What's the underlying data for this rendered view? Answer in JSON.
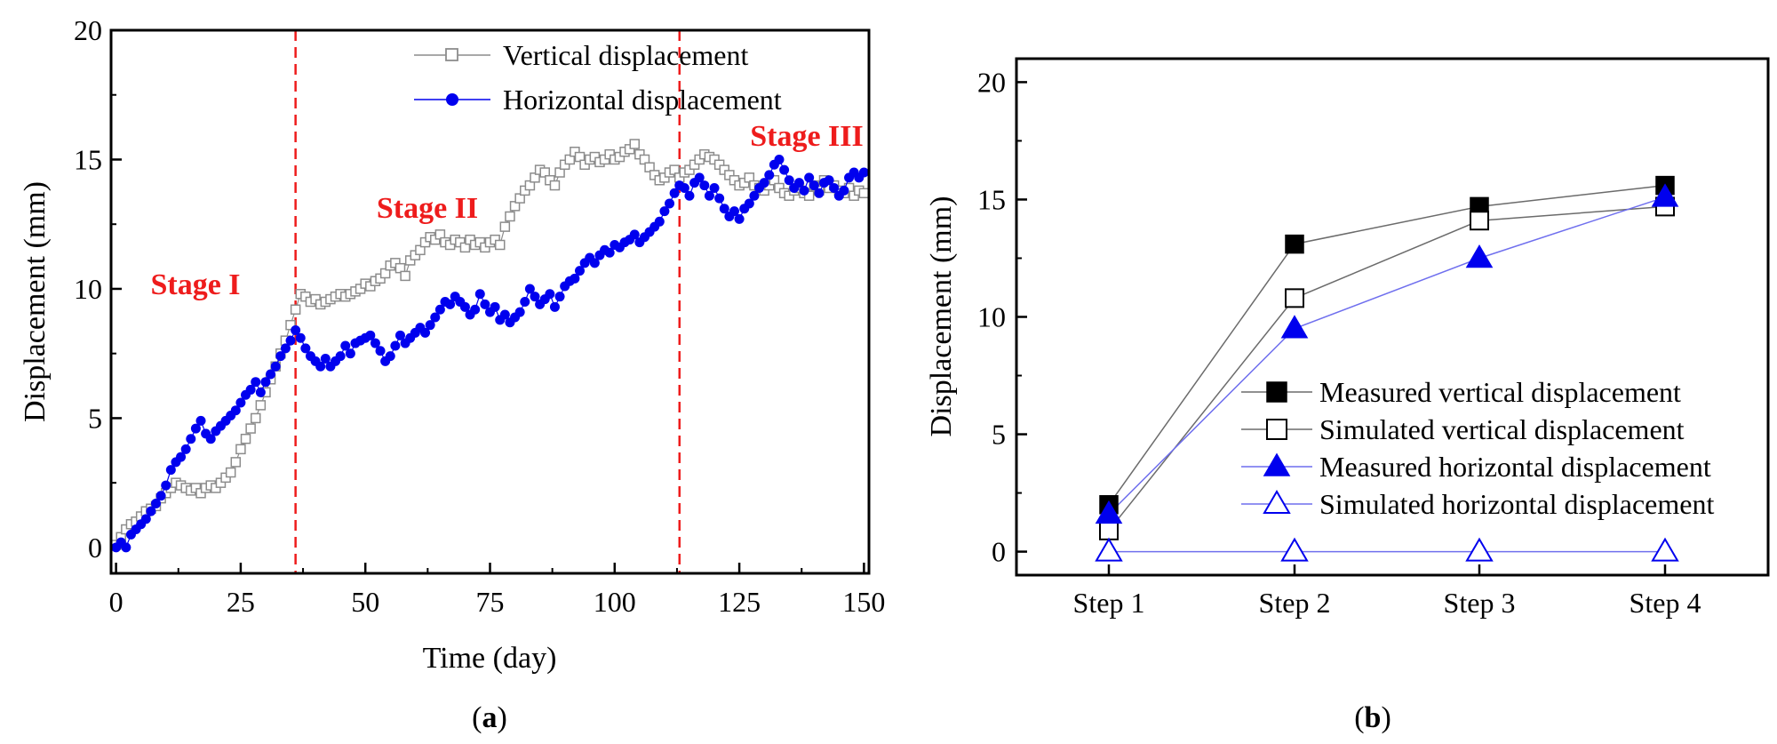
{
  "chart_data": [
    {
      "id": "a",
      "type": "scatter",
      "panel_label": "a",
      "xlabel": "Time (day)",
      "ylabel": "Displacement (mm)",
      "xlim": [
        -1,
        151
      ],
      "ylim": [
        -1,
        20
      ],
      "xticks": [
        0,
        25,
        50,
        75,
        100,
        125,
        150
      ],
      "yticks": [
        0,
        5,
        10,
        15,
        20
      ],
      "stage_boundaries": [
        36,
        113
      ],
      "stage_labels": [
        {
          "text": "Stage I",
          "x": 16,
          "y": 10.2
        },
        {
          "text": "Stage II",
          "x": 62,
          "y": 12.9
        },
        {
          "text": "Stage III",
          "x": 139.5,
          "y": 15.8
        }
      ],
      "colors": {
        "vertical": "#8c8c8c",
        "horizontal": "#0000ee",
        "stage": "#ee1c1c"
      },
      "series": [
        {
          "name": "Vertical displacement",
          "marker": "open-square",
          "color": "#8c8c8c",
          "x": [
            0,
            1,
            2,
            3,
            4,
            5,
            6,
            7,
            8,
            9,
            10,
            11,
            12,
            13,
            14,
            15,
            16,
            17,
            18,
            19,
            20,
            21,
            22,
            23,
            24,
            25,
            26,
            27,
            28,
            29,
            30,
            31,
            32,
            33,
            34,
            35,
            36,
            37,
            38,
            39,
            40,
            41,
            42,
            43,
            44,
            45,
            46,
            47,
            48,
            49,
            50,
            51,
            52,
            53,
            54,
            55,
            56,
            57,
            58,
            59,
            60,
            61,
            62,
            63,
            64,
            65,
            66,
            67,
            68,
            69,
            70,
            71,
            72,
            73,
            74,
            75,
            76,
            77,
            78,
            79,
            80,
            81,
            82,
            83,
            84,
            85,
            86,
            87,
            88,
            89,
            90,
            91,
            92,
            93,
            94,
            95,
            96,
            97,
            98,
            99,
            100,
            101,
            102,
            103,
            104,
            105,
            106,
            107,
            108,
            109,
            110,
            111,
            112,
            113,
            114,
            115,
            116,
            117,
            118,
            119,
            120,
            121,
            122,
            123,
            124,
            125,
            126,
            127,
            128,
            129,
            130,
            131,
            132,
            133,
            134,
            135,
            136,
            137,
            138,
            139,
            140,
            141,
            142,
            143,
            144,
            145,
            146,
            147,
            148,
            149,
            150
          ],
          "y": [
            0.1,
            0.4,
            0.7,
            0.9,
            1.0,
            1.2,
            1.4,
            1.5,
            1.6,
            1.9,
            2.1,
            2.3,
            2.5,
            2.4,
            2.3,
            2.2,
            2.3,
            2.1,
            2.3,
            2.4,
            2.3,
            2.5,
            2.7,
            2.9,
            3.3,
            3.8,
            4.2,
            4.6,
            5.0,
            5.5,
            6.0,
            6.5,
            7.0,
            7.5,
            8.0,
            8.6,
            9.2,
            9.8,
            9.7,
            9.5,
            9.6,
            9.4,
            9.5,
            9.6,
            9.7,
            9.8,
            9.7,
            9.8,
            9.9,
            10.0,
            10.2,
            10.1,
            10.3,
            10.4,
            10.6,
            10.9,
            11.0,
            10.8,
            10.5,
            11.1,
            11.3,
            11.5,
            11.8,
            12.0,
            11.9,
            12.1,
            11.8,
            11.7,
            11.9,
            11.8,
            11.6,
            11.9,
            11.7,
            11.8,
            11.6,
            11.8,
            11.9,
            11.7,
            12.4,
            12.8,
            13.2,
            13.5,
            13.8,
            14.0,
            14.3,
            14.6,
            14.5,
            14.2,
            14.0,
            14.5,
            14.8,
            15.0,
            15.3,
            15.1,
            14.8,
            15.0,
            15.1,
            14.9,
            15.0,
            15.2,
            15.0,
            15.1,
            15.3,
            15.4,
            15.6,
            15.2,
            15.0,
            14.7,
            14.4,
            14.2,
            14.3,
            14.5,
            14.6,
            14.3,
            14.5,
            14.6,
            14.8,
            15.0,
            15.2,
            15.1,
            15.0,
            14.8,
            14.6,
            14.4,
            14.2,
            14.0,
            14.1,
            14.3,
            14.0,
            13.9,
            13.8,
            14.0,
            14.2,
            13.9,
            13.7,
            13.6,
            13.8,
            13.9,
            13.7,
            13.6,
            14.0,
            13.8,
            14.2,
            13.9,
            14.0,
            13.8,
            13.7,
            13.9,
            13.6,
            13.8,
            13.7
          ]
        },
        {
          "name": "Horizontal displacement",
          "marker": "filled-circle",
          "color": "#0000ee",
          "x": [
            0,
            1,
            2,
            3,
            4,
            5,
            6,
            7,
            8,
            9,
            10,
            11,
            12,
            13,
            14,
            15,
            16,
            17,
            18,
            19,
            20,
            21,
            22,
            23,
            24,
            25,
            26,
            27,
            28,
            29,
            30,
            31,
            32,
            33,
            34,
            35,
            36,
            37,
            38,
            39,
            40,
            41,
            42,
            43,
            44,
            45,
            46,
            47,
            48,
            49,
            50,
            51,
            52,
            53,
            54,
            55,
            56,
            57,
            58,
            59,
            60,
            61,
            62,
            63,
            64,
            65,
            66,
            67,
            68,
            69,
            70,
            71,
            72,
            73,
            74,
            75,
            76,
            77,
            78,
            79,
            80,
            81,
            82,
            83,
            84,
            85,
            86,
            87,
            88,
            89,
            90,
            91,
            92,
            93,
            94,
            95,
            96,
            97,
            98,
            99,
            100,
            101,
            102,
            103,
            104,
            105,
            106,
            107,
            108,
            109,
            110,
            111,
            112,
            113,
            114,
            115,
            116,
            117,
            118,
            119,
            120,
            121,
            122,
            123,
            124,
            125,
            126,
            127,
            128,
            129,
            130,
            131,
            132,
            133,
            134,
            135,
            136,
            137,
            138,
            139,
            140,
            141,
            142,
            143,
            144,
            145,
            146,
            147,
            148,
            149,
            150
          ],
          "y": [
            0.0,
            0.2,
            0.0,
            0.5,
            0.7,
            0.9,
            1.1,
            1.4,
            1.7,
            2.0,
            2.4,
            3.0,
            3.3,
            3.5,
            3.8,
            4.2,
            4.6,
            4.9,
            4.4,
            4.2,
            4.5,
            4.7,
            4.9,
            5.1,
            5.3,
            5.6,
            5.9,
            6.1,
            6.4,
            6.0,
            6.4,
            6.7,
            7.0,
            7.4,
            7.7,
            8.0,
            8.4,
            8.1,
            7.7,
            7.4,
            7.2,
            7.0,
            7.3,
            7.0,
            7.2,
            7.4,
            7.8,
            7.5,
            7.9,
            8.0,
            8.1,
            8.2,
            7.9,
            7.6,
            7.2,
            7.4,
            7.8,
            8.2,
            7.9,
            8.1,
            8.3,
            8.5,
            8.3,
            8.6,
            8.9,
            9.2,
            9.5,
            9.4,
            9.7,
            9.5,
            9.3,
            9.0,
            9.2,
            9.8,
            9.4,
            9.1,
            9.3,
            8.8,
            9.0,
            8.7,
            8.9,
            9.1,
            9.5,
            10.0,
            9.7,
            9.4,
            9.6,
            9.8,
            9.3,
            9.7,
            10.1,
            10.3,
            10.4,
            10.7,
            11.0,
            11.2,
            11.0,
            11.3,
            11.5,
            11.4,
            11.7,
            11.6,
            11.8,
            11.9,
            12.1,
            11.8,
            12.0,
            12.2,
            12.4,
            12.6,
            13.0,
            13.3,
            13.7,
            14.0,
            13.9,
            13.6,
            14.1,
            14.3,
            14.0,
            13.6,
            13.9,
            13.5,
            13.1,
            12.8,
            13.0,
            12.7,
            13.1,
            13.3,
            13.6,
            13.9,
            14.1,
            14.4,
            14.8,
            15.0,
            14.6,
            14.2,
            13.9,
            14.1,
            13.8,
            14.3,
            14.0,
            13.7,
            14.1,
            14.2,
            13.9,
            13.6,
            13.8,
            14.3,
            14.5,
            14.3,
            14.5
          ]
        }
      ]
    },
    {
      "id": "b",
      "type": "line",
      "panel_label": "b",
      "categories": [
        "Step 1",
        "Step 2",
        "Step 3",
        "Step 4"
      ],
      "xlabel": "",
      "ylabel": "Displacement (mm)",
      "ylim": [
        -1,
        21
      ],
      "yticks": [
        0,
        5,
        10,
        15,
        20
      ],
      "legend": "lower-right",
      "series": [
        {
          "name": "Measured vertical displacement",
          "marker": "filled-square",
          "color": "#000000",
          "line_color": "#6b6b6b",
          "values": [
            2.0,
            13.1,
            14.7,
            15.6
          ]
        },
        {
          "name": "Simulated vertical displacement",
          "marker": "open-square",
          "color": "#000000",
          "line_color": "#6b6b6b",
          "values": [
            0.9,
            10.8,
            14.1,
            14.7
          ]
        },
        {
          "name": "Measured horizontal displacement",
          "marker": "filled-triangle",
          "color": "#0000ee",
          "line_color": "#6f6fee",
          "values": [
            1.6,
            9.5,
            12.5,
            15.1
          ]
        },
        {
          "name": "Simulated horizontal displacement",
          "marker": "open-triangle",
          "color": "#0000ee",
          "line_color": "#6f6fee",
          "values": [
            0.0,
            0.0,
            0.0,
            0.0
          ]
        }
      ]
    }
  ]
}
